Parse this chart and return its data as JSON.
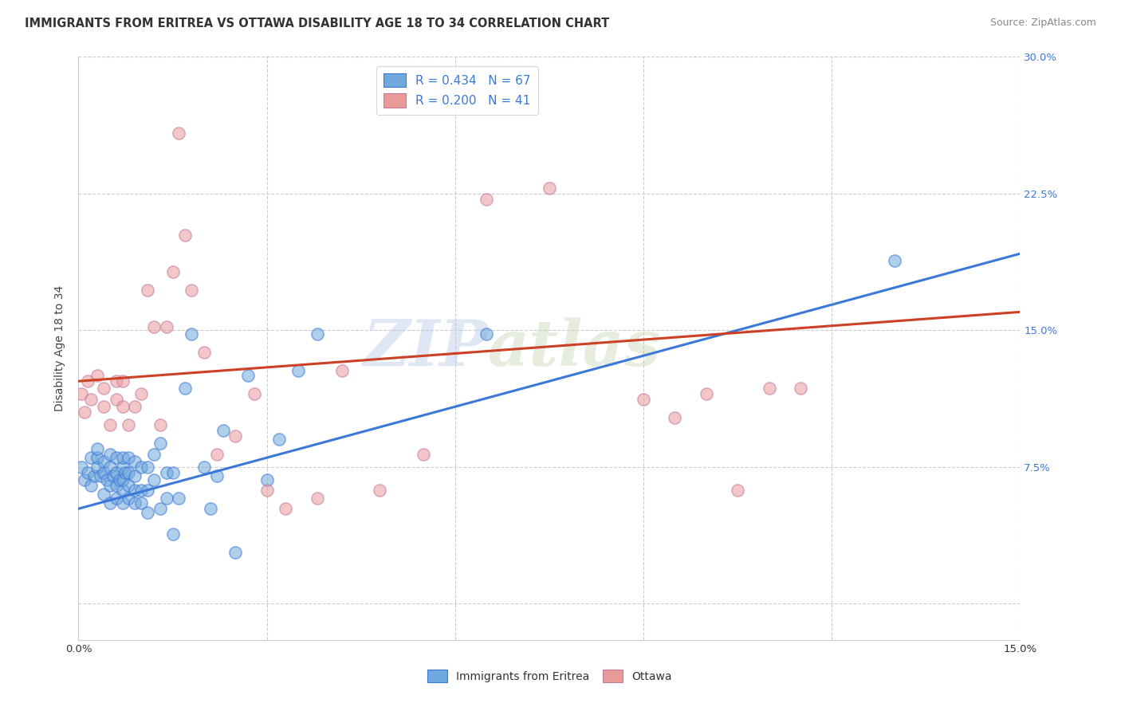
{
  "title": "IMMIGRANTS FROM ERITREA VS OTTAWA DISABILITY AGE 18 TO 34 CORRELATION CHART",
  "source": "Source: ZipAtlas.com",
  "ylabel": "Disability Age 18 to 34",
  "x_min": 0.0,
  "x_max": 0.15,
  "y_min": -0.02,
  "y_max": 0.3,
  "x_tick_positions": [
    0.0,
    0.03,
    0.06,
    0.09,
    0.12,
    0.15
  ],
  "x_tick_labels": [
    "0.0%",
    "",
    "",
    "",
    "",
    "15.0%"
  ],
  "y_tick_positions": [
    0.0,
    0.075,
    0.15,
    0.225,
    0.3
  ],
  "y_tick_labels_right": [
    "",
    "7.5%",
    "15.0%",
    "22.5%",
    "30.0%"
  ],
  "legend_labels": [
    "Immigrants from Eritrea",
    "Ottawa"
  ],
  "blue_R": "0.434",
  "blue_N": "67",
  "pink_R": "0.200",
  "pink_N": "41",
  "blue_color": "#6fa8dc",
  "pink_color": "#ea9999",
  "blue_line_color": "#3c78d8",
  "pink_line_color": "#cc4125",
  "watermark_zip": "ZIP",
  "watermark_atlas": "atlas",
  "blue_scatter_x": [
    0.0005,
    0.001,
    0.0015,
    0.002,
    0.002,
    0.0025,
    0.003,
    0.003,
    0.003,
    0.0035,
    0.004,
    0.004,
    0.004,
    0.0045,
    0.005,
    0.005,
    0.005,
    0.005,
    0.0055,
    0.006,
    0.006,
    0.006,
    0.006,
    0.0065,
    0.007,
    0.007,
    0.007,
    0.007,
    0.007,
    0.0075,
    0.008,
    0.008,
    0.008,
    0.008,
    0.009,
    0.009,
    0.009,
    0.009,
    0.01,
    0.01,
    0.01,
    0.011,
    0.011,
    0.011,
    0.012,
    0.012,
    0.013,
    0.013,
    0.014,
    0.014,
    0.015,
    0.015,
    0.016,
    0.017,
    0.018,
    0.02,
    0.021,
    0.022,
    0.023,
    0.025,
    0.027,
    0.03,
    0.032,
    0.035,
    0.038,
    0.065,
    0.13
  ],
  "blue_scatter_y": [
    0.075,
    0.068,
    0.072,
    0.065,
    0.08,
    0.07,
    0.075,
    0.08,
    0.085,
    0.07,
    0.06,
    0.072,
    0.078,
    0.068,
    0.055,
    0.065,
    0.075,
    0.082,
    0.07,
    0.058,
    0.065,
    0.072,
    0.08,
    0.068,
    0.055,
    0.062,
    0.068,
    0.075,
    0.08,
    0.072,
    0.058,
    0.065,
    0.072,
    0.08,
    0.055,
    0.062,
    0.07,
    0.078,
    0.055,
    0.062,
    0.075,
    0.05,
    0.062,
    0.075,
    0.068,
    0.082,
    0.052,
    0.088,
    0.058,
    0.072,
    0.038,
    0.072,
    0.058,
    0.118,
    0.148,
    0.075,
    0.052,
    0.07,
    0.095,
    0.028,
    0.125,
    0.068,
    0.09,
    0.128,
    0.148,
    0.148,
    0.188
  ],
  "pink_scatter_x": [
    0.0005,
    0.001,
    0.0015,
    0.002,
    0.003,
    0.004,
    0.004,
    0.005,
    0.006,
    0.006,
    0.007,
    0.007,
    0.008,
    0.009,
    0.01,
    0.011,
    0.012,
    0.013,
    0.014,
    0.015,
    0.016,
    0.017,
    0.018,
    0.02,
    0.022,
    0.025,
    0.028,
    0.03,
    0.033,
    0.038,
    0.042,
    0.048,
    0.055,
    0.065,
    0.075,
    0.09,
    0.095,
    0.1,
    0.105,
    0.11,
    0.115
  ],
  "pink_scatter_y": [
    0.115,
    0.105,
    0.122,
    0.112,
    0.125,
    0.108,
    0.118,
    0.098,
    0.112,
    0.122,
    0.108,
    0.122,
    0.098,
    0.108,
    0.115,
    0.172,
    0.152,
    0.098,
    0.152,
    0.182,
    0.258,
    0.202,
    0.172,
    0.138,
    0.082,
    0.092,
    0.115,
    0.062,
    0.052,
    0.058,
    0.128,
    0.062,
    0.082,
    0.222,
    0.228,
    0.112,
    0.102,
    0.115,
    0.062,
    0.118,
    0.118
  ],
  "blue_line_x": [
    0.0,
    0.15
  ],
  "blue_line_y": [
    0.052,
    0.192
  ],
  "pink_line_x": [
    0.0,
    0.15
  ],
  "pink_line_y": [
    0.122,
    0.16
  ]
}
